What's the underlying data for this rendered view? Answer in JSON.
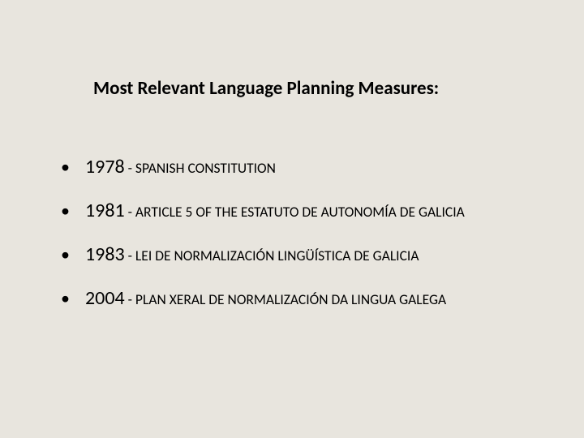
{
  "background_color": "#e8e5de",
  "text_color": "#000000",
  "title": {
    "text": "Most Relevant Language Planning Measures:",
    "fontsize": 23,
    "fontweight": "bold"
  },
  "items": [
    {
      "year": "1978",
      "desc": " - SPANISH CONSTITUTION"
    },
    {
      "year": "1981",
      "desc": " - ARTICLE 5 OF THE ESTATUTO DE AUTONOMÍA DE GALICIA"
    },
    {
      "year": "1983",
      "desc": " -  LEI DE NORMALIZACIÓN LINGÜÍSTICA DE GALICIA"
    },
    {
      "year": "2004",
      "desc": " - PLAN XERAL DE NORMALIZACIÓN DA LINGUA GALEGA"
    }
  ],
  "year_fontsize": 24,
  "desc_fontsize": 17.5,
  "bullet_char": "•"
}
